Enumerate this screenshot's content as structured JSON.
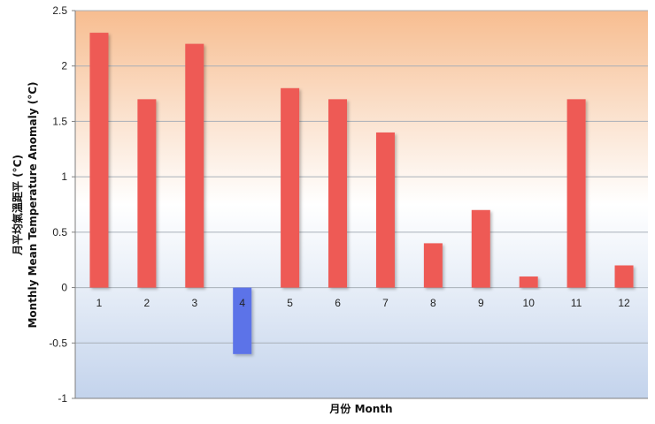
{
  "chart_data": {
    "type": "bar",
    "title": "",
    "xlabel": "月份 Month",
    "ylabel": "月平均氣溫距平 (°C) Monthly Mean Temperature Anomaly (°C)",
    "ylabel_lines": [
      "月平均氣溫距平  (°C)",
      "Monthly Mean Temperature Anomaly (°C)"
    ],
    "categories": [
      "1",
      "2",
      "3",
      "4",
      "5",
      "6",
      "7",
      "8",
      "9",
      "10",
      "11",
      "12"
    ],
    "series": [
      {
        "values": [
          2.3,
          1.7,
          2.2,
          -0.6,
          1.8,
          1.7,
          1.4,
          0.4,
          0.7,
          0.1,
          1.7,
          0.2
        ]
      }
    ],
    "ylim": [
      -1,
      2.5
    ],
    "yticks": [
      "2.5",
      "2",
      "1.5",
      "1",
      "0.5",
      "0",
      "-0.5",
      "-1"
    ],
    "grid": true,
    "legend": "none",
    "colors": {
      "positive": "#ee5a55",
      "negative": "#5b73e8",
      "background_top": "#f7bd90",
      "background_mid": "#ffffff",
      "background_bottom": "#c3d3ec",
      "gridline": "#a9b0b8"
    }
  }
}
